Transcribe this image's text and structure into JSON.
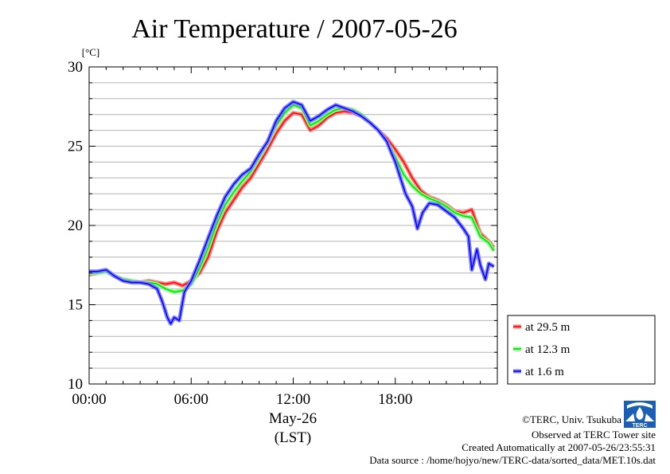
{
  "chart_data": {
    "type": "line",
    "title": "Air Temperature / 2007-05-26",
    "ylabel": "[°C]",
    "xlabel_lines": [
      "May-26",
      "(LST)"
    ],
    "ylim": [
      10,
      30
    ],
    "yticks": [
      10,
      15,
      20,
      25,
      30
    ],
    "xlim": [
      0,
      24
    ],
    "xticks": [
      {
        "label": "00:00",
        "value": 0
      },
      {
        "label": "06:00",
        "value": 6
      },
      {
        "label": "12:00",
        "value": 12
      },
      {
        "label": "18:00",
        "value": 18
      }
    ],
    "grid": true,
    "legend_position": "bottom-right",
    "series": [
      {
        "name": "at 29.5 m",
        "color": "#ff0000",
        "band_color": "#ff8080",
        "x": [
          0,
          0.5,
          1,
          1.5,
          2,
          2.5,
          3,
          3.5,
          4,
          4.5,
          5,
          5.5,
          6,
          6.5,
          7,
          7.5,
          8,
          8.5,
          9,
          9.5,
          10,
          10.5,
          11,
          11.5,
          12,
          12.5,
          13,
          13.5,
          14,
          14.5,
          15,
          15.5,
          16,
          16.5,
          17,
          17.5,
          18,
          18.5,
          19,
          19.5,
          20,
          20.5,
          21,
          21.5,
          22,
          22.5,
          23,
          23.5,
          23.8
        ],
        "y": [
          16.9,
          17.0,
          17.1,
          16.8,
          16.6,
          16.5,
          16.4,
          16.5,
          16.4,
          16.3,
          16.4,
          16.2,
          16.5,
          17.0,
          18.0,
          19.6,
          20.8,
          21.6,
          22.4,
          23.0,
          23.9,
          24.8,
          25.8,
          26.6,
          27.1,
          27.0,
          26.0,
          26.3,
          26.8,
          27.1,
          27.2,
          27.1,
          26.9,
          26.5,
          26.0,
          25.5,
          24.8,
          24.0,
          23.0,
          22.2,
          21.8,
          21.6,
          21.3,
          20.9,
          20.8,
          21.0,
          19.5,
          19.0,
          18.6
        ]
      },
      {
        "name": "at 12.3 m",
        "color": "#00dd00",
        "band_color": "#80ff80",
        "x": [
          0,
          0.5,
          1,
          1.5,
          2,
          2.5,
          3,
          3.5,
          4,
          4.5,
          5,
          5.5,
          6,
          6.5,
          7,
          7.5,
          8,
          8.5,
          9,
          9.5,
          10,
          10.5,
          11,
          11.5,
          12,
          12.5,
          13,
          13.5,
          14,
          14.5,
          15,
          15.5,
          16,
          16.5,
          17,
          17.5,
          18,
          18.5,
          19,
          19.5,
          20,
          20.5,
          21,
          21.5,
          22,
          22.5,
          23,
          23.5,
          23.8
        ],
        "y": [
          17.0,
          17.0,
          17.1,
          16.8,
          16.6,
          16.5,
          16.4,
          16.4,
          16.3,
          16.0,
          15.8,
          15.9,
          16.3,
          17.3,
          18.6,
          20.1,
          21.3,
          22.1,
          22.8,
          23.4,
          24.3,
          25.2,
          26.3,
          27.1,
          27.6,
          27.4,
          26.3,
          26.6,
          27.0,
          27.3,
          27.4,
          27.3,
          27.0,
          26.5,
          26.0,
          25.3,
          24.3,
          23.2,
          22.5,
          22.0,
          21.7,
          21.5,
          21.2,
          20.8,
          20.6,
          20.5,
          19.3,
          18.9,
          18.4
        ]
      },
      {
        "name": "at 1.6 m",
        "color": "#0000ff",
        "band_color": "#8080ff",
        "x": [
          0,
          0.5,
          1,
          1.5,
          2,
          2.5,
          3,
          3.5,
          4,
          4.3,
          4.6,
          4.8,
          5,
          5.3,
          5.6,
          6,
          6.5,
          7,
          7.5,
          8,
          8.5,
          9,
          9.5,
          10,
          10.5,
          11,
          11.5,
          12,
          12.5,
          13,
          13.5,
          14,
          14.5,
          15,
          15.5,
          16,
          16.5,
          17,
          17.5,
          17.8,
          18,
          18.3,
          18.6,
          19,
          19.3,
          19.6,
          20,
          20.5,
          21,
          21.5,
          22,
          22.3,
          22.5,
          22.8,
          23,
          23.3,
          23.5,
          23.8
        ],
        "y": [
          17.1,
          17.1,
          17.2,
          16.8,
          16.5,
          16.4,
          16.4,
          16.3,
          16.0,
          15.2,
          14.2,
          13.8,
          14.2,
          14.0,
          15.8,
          16.5,
          17.8,
          19.2,
          20.6,
          21.8,
          22.6,
          23.2,
          23.6,
          24.5,
          25.3,
          26.6,
          27.4,
          27.8,
          27.6,
          26.6,
          26.9,
          27.3,
          27.6,
          27.4,
          27.2,
          26.9,
          26.5,
          26.0,
          25.3,
          24.5,
          24.0,
          23.0,
          22.0,
          21.2,
          19.8,
          20.8,
          21.4,
          21.3,
          20.9,
          20.5,
          19.8,
          19.3,
          17.2,
          18.5,
          17.5,
          16.6,
          17.6,
          17.4
        ]
      }
    ]
  },
  "credits": {
    "copyright": "©TERC, Univ. Tsukuba",
    "observed": "Observed at TERC Tower site",
    "created": "Created Automatically at 2007-05-26/23:55:31",
    "source": "Data source : /home/hojyo/new/TERC-data/sorted_data/MET.10s.dat"
  },
  "logo": {
    "text": "TERC",
    "color": "#1a5fb4"
  }
}
